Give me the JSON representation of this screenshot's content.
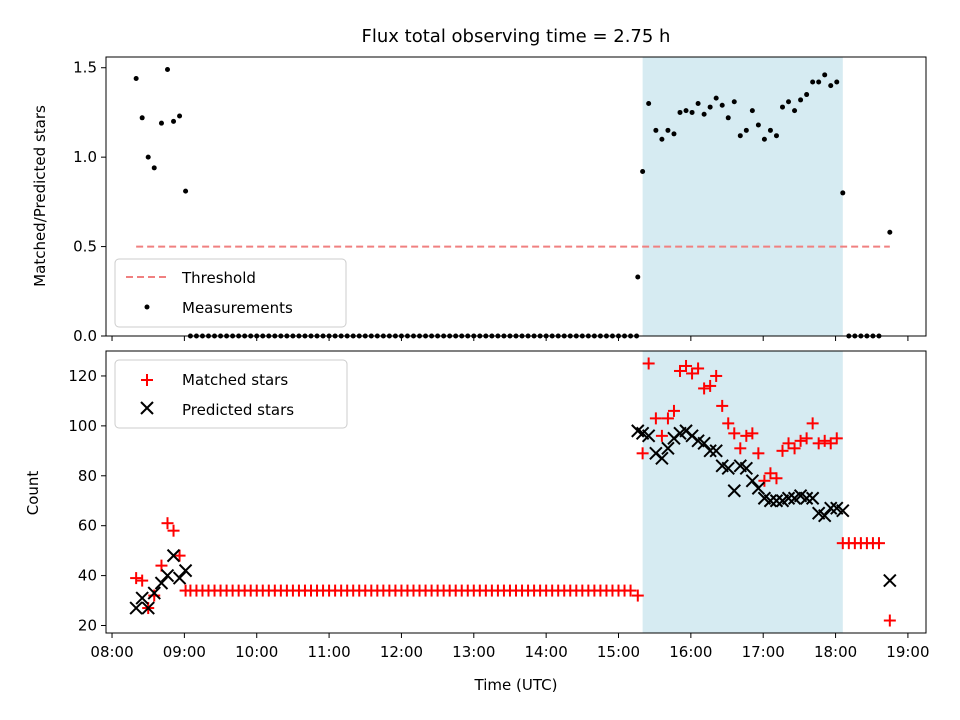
{
  "chart_data": [
    {
      "type": "scatter",
      "title": "Flux total observing time = 2.75 h",
      "xlabel": "",
      "ylabel": "Matched/Predicted stars",
      "ylim": [
        0,
        1.56
      ],
      "yticks": [
        0.0,
        0.5,
        1.0,
        1.5
      ],
      "ytick_labels": [
        "0.0",
        "0.5",
        "1.0",
        "1.5"
      ],
      "shaded_span": [
        "15:20",
        "18:06"
      ],
      "shaded_color": "#add8e6",
      "legend": {
        "placement": "lower-left",
        "entries": [
          "Threshold",
          "Measurements"
        ]
      },
      "series": [
        {
          "name": "Threshold",
          "kind": "dashed-line",
          "color": "#f08080",
          "x": [
            "08:20",
            "18:45"
          ],
          "values": [
            0.5,
            0.5
          ]
        },
        {
          "name": "Measurements",
          "kind": "dots",
          "color": "#000000",
          "x": [
            "08:20",
            "08:25",
            "08:30",
            "08:35",
            "08:41",
            "08:46",
            "08:51",
            "08:56",
            "09:01"
          ],
          "values": [
            1.44,
            1.22,
            1.0,
            0.94,
            1.19,
            1.49,
            1.2,
            1.23,
            0.81
          ],
          "zero_run": {
            "from": "09:05",
            "to": "15:15",
            "step_min": 5,
            "value": 0.0
          },
          "x2": [
            "15:16",
            "15:20",
            "15:25",
            "15:31",
            "15:36",
            "15:41",
            "15:46",
            "15:51",
            "15:56",
            "16:01",
            "16:06",
            "16:11",
            "16:16",
            "16:21",
            "16:26",
            "16:31",
            "16:36",
            "16:41",
            "16:46",
            "16:51",
            "16:56",
            "17:01",
            "17:06",
            "17:11",
            "17:16",
            "17:21",
            "17:26",
            "17:31",
            "17:36",
            "17:41",
            "17:46",
            "17:51",
            "17:56",
            "18:01",
            "18:06",
            "18:11",
            "18:16",
            "18:21",
            "18:26",
            "18:31",
            "18:36",
            "18:45"
          ],
          "values2": [
            0.33,
            0.92,
            1.3,
            1.15,
            1.1,
            1.15,
            1.13,
            1.25,
            1.26,
            1.25,
            1.3,
            1.24,
            1.28,
            1.33,
            1.29,
            1.22,
            1.31,
            1.12,
            1.15,
            1.26,
            1.18,
            1.1,
            1.15,
            1.12,
            1.28,
            1.31,
            1.26,
            1.32,
            1.35,
            1.42,
            1.42,
            1.46,
            1.4,
            1.42,
            0.8,
            0.0,
            0.0,
            0.0,
            0.0,
            0.0,
            0.0,
            0.58
          ]
        }
      ]
    },
    {
      "type": "scatter",
      "title": "",
      "xlabel": "Time (UTC)",
      "ylabel": "Count",
      "ylim": [
        17,
        130
      ],
      "yticks": [
        20,
        40,
        60,
        80,
        100,
        120
      ],
      "xlim": [
        "07:55",
        "19:15"
      ],
      "xtick_labels": [
        "08:00",
        "09:00",
        "10:00",
        "11:00",
        "12:00",
        "13:00",
        "14:00",
        "15:00",
        "16:00",
        "17:00",
        "18:00",
        "19:00"
      ],
      "shaded_span": [
        "15:20",
        "18:06"
      ],
      "shaded_color": "#add8e6",
      "legend": {
        "placement": "top-left",
        "entries": [
          "Matched stars",
          "Predicted stars"
        ]
      },
      "series": [
        {
          "name": "Matched stars",
          "marker": "plus",
          "color": "#ff0000",
          "x": [
            "08:20",
            "08:25",
            "08:30",
            "08:35",
            "08:41",
            "08:46",
            "08:51",
            "08:56",
            "09:01"
          ],
          "values": [
            39,
            38,
            27,
            32,
            44,
            61,
            58,
            48,
            34
          ],
          "flat_run": {
            "from": "09:05",
            "to": "15:10",
            "step_min": 5,
            "value": 34
          },
          "x2": [
            "15:16",
            "15:20",
            "15:25",
            "15:31",
            "15:36",
            "15:41",
            "15:46",
            "15:51",
            "15:56",
            "16:01",
            "16:06",
            "16:11",
            "16:16",
            "16:21",
            "16:26",
            "16:31",
            "16:36",
            "16:41",
            "16:46",
            "16:51",
            "16:56",
            "17:01",
            "17:06",
            "17:11",
            "17:16",
            "17:21",
            "17:26",
            "17:31",
            "17:36",
            "17:41",
            "17:46",
            "17:51",
            "17:56",
            "18:01",
            "18:06",
            "18:11",
            "18:16",
            "18:21",
            "18:26",
            "18:31",
            "18:36",
            "18:45"
          ],
          "values2": [
            32,
            89,
            125,
            103,
            96,
            103,
            106,
            122,
            124,
            121,
            123,
            115,
            116,
            120,
            108,
            101,
            97,
            91,
            96,
            97,
            89,
            78,
            81,
            79,
            90,
            93,
            91,
            94,
            95,
            101,
            93,
            94,
            93,
            95,
            53,
            53,
            53,
            53,
            53,
            53,
            53,
            22
          ]
        },
        {
          "name": "Predicted stars",
          "marker": "x",
          "color": "#000000",
          "x": [
            "08:20",
            "08:25",
            "08:30",
            "08:35",
            "08:41",
            "08:46",
            "08:51",
            "08:56",
            "09:01"
          ],
          "values": [
            27,
            31,
            27,
            33,
            37,
            40,
            48,
            39,
            42
          ],
          "x2": [
            "15:16",
            "15:20",
            "15:25",
            "15:31",
            "15:36",
            "15:41",
            "15:46",
            "15:51",
            "15:56",
            "16:01",
            "16:06",
            "16:11",
            "16:16",
            "16:21",
            "16:26",
            "16:31",
            "16:36",
            "16:41",
            "16:46",
            "16:51",
            "16:56",
            "17:01",
            "17:06",
            "17:11",
            "17:16",
            "17:21",
            "17:26",
            "17:31",
            "17:36",
            "17:41",
            "17:46",
            "17:51",
            "17:56",
            "18:01",
            "18:06",
            "18:45"
          ],
          "values2": [
            98,
            97,
            96,
            89,
            87,
            91,
            95,
            97,
            98,
            96,
            94,
            93,
            90,
            90,
            84,
            83,
            74,
            84,
            83,
            78,
            75,
            71,
            70,
            70,
            70,
            71,
            71,
            72,
            71,
            71,
            65,
            64,
            67,
            67,
            66,
            38
          ]
        }
      ]
    }
  ]
}
